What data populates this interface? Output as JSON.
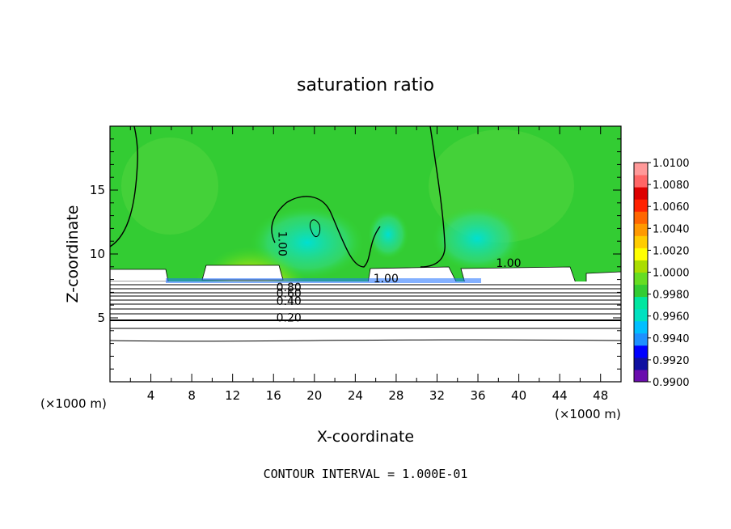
{
  "chart_data": {
    "type": "heatmap",
    "title": "saturation ratio",
    "xlabel": "X-coordinate",
    "ylabel": "Z-coordinate",
    "x_unit_left": "(×1000 m)",
    "x_unit_right": "(×1000 m)",
    "xlim": [
      0,
      50
    ],
    "ylim": [
      0,
      20
    ],
    "x_ticks": [
      4,
      8,
      12,
      16,
      20,
      24,
      28,
      32,
      36,
      40,
      44,
      48
    ],
    "y_ticks": [
      5,
      10,
      15
    ],
    "footer": "CONTOUR INTERVAL = 1.000E-01",
    "colorbar": {
      "min": 0.99,
      "max": 1.01,
      "ticks": [
        "1.0100",
        "1.0080",
        "1.0060",
        "1.0040",
        "1.0020",
        "1.0000",
        "0.9980",
        "0.9960",
        "0.9940",
        "0.9920",
        "0.9900"
      ],
      "colors": [
        "#6a0dad",
        "#1010a0",
        "#0000ff",
        "#1e90ff",
        "#00bfff",
        "#00e0c0",
        "#00e6a0",
        "#33cc33",
        "#66dd22",
        "#aadd00",
        "#ffff00",
        "#ffcc00",
        "#ff9900",
        "#ff6600",
        "#ff2200",
        "#dd0000",
        "#ff6666",
        "#ff9999"
      ]
    },
    "contour_labels": [
      {
        "text": "1.00",
        "x": 16.5,
        "y": 10.8,
        "rotate": 90
      },
      {
        "text": "1.00",
        "x": 39.0,
        "y": 9.0
      },
      {
        "text": "1.00",
        "x": 27.0,
        "y": 7.8
      },
      {
        "text": "0.80",
        "x": 17.5,
        "y": 7.1
      },
      {
        "text": "0.60",
        "x": 17.5,
        "y": 6.6
      },
      {
        "text": "0.40",
        "x": 17.5,
        "y": 6.0
      },
      {
        "text": "0.20",
        "x": 17.5,
        "y": 4.7
      }
    ]
  }
}
